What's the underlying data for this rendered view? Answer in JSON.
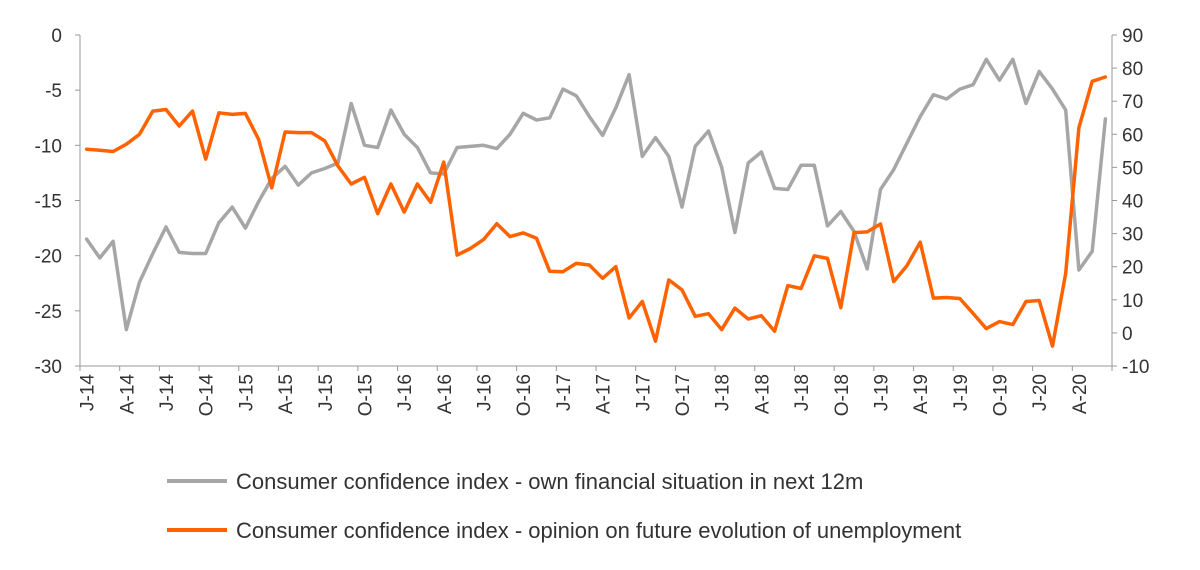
{
  "chart_data": {
    "type": "line",
    "x_tick_labels": [
      "J-14",
      "A-14",
      "J-14",
      "O-14",
      "J-15",
      "A-15",
      "J-15",
      "O-15",
      "J-16",
      "A-16",
      "J-16",
      "O-16",
      "J-17",
      "A-17",
      "J-17",
      "O-17",
      "J-18",
      "A-18",
      "J-18",
      "O-18",
      "J-19",
      "A-19",
      "J-19",
      "O-19",
      "J-20",
      "A-20"
    ],
    "y_left": {
      "min": -30,
      "max": 0,
      "ticks": [
        0,
        -5,
        -10,
        -15,
        -20,
        -25,
        -30
      ]
    },
    "y_right": {
      "min": -10,
      "max": 90,
      "ticks": [
        90,
        80,
        70,
        60,
        50,
        40,
        30,
        20,
        10,
        0,
        -10
      ]
    },
    "grid": false,
    "legend_position": "bottom",
    "series": [
      {
        "name": "Consumer confidence index - own financial situation in next 12m",
        "axis": "left",
        "color": "#a6a6a6",
        "values": [
          -18.5,
          -20.2,
          -18.7,
          -26.7,
          -22.4,
          -19.8,
          -17.4,
          -19.7,
          -19.8,
          -19.8,
          -17.0,
          -15.6,
          -17.5,
          -15.1,
          -13.0,
          -11.9,
          -13.6,
          -12.5,
          -12.1,
          -11.6,
          -6.2,
          -10.0,
          -10.2,
          -6.8,
          -9.0,
          -10.2,
          -12.5,
          -12.6,
          -10.2,
          -10.1,
          -10.0,
          -10.3,
          -9.0,
          -7.1,
          -7.7,
          -7.5,
          -4.9,
          -5.5,
          -7.4,
          -9.1,
          -6.6,
          -3.6,
          -11.0,
          -9.3,
          -11.0,
          -15.6,
          -10.1,
          -8.7,
          -12.0,
          -17.9,
          -11.6,
          -10.6,
          -13.9,
          -14.0,
          -11.8,
          -11.8,
          -17.3,
          -16.0,
          -17.8,
          -21.2,
          -14.0,
          -12.2,
          -9.8,
          -7.4,
          -5.4,
          -5.8,
          -4.9,
          -4.5,
          -2.2,
          -4.1,
          -2.2,
          -6.2,
          -3.3,
          -4.9,
          -6.8,
          -21.3,
          -19.6,
          -7.6
        ]
      },
      {
        "name": "Consumer confidence index - opinion on future evolution of unemployment",
        "axis": "right",
        "color": "#ff6200",
        "values": [
          55.5,
          55.2,
          54.8,
          57.0,
          60.0,
          67.0,
          67.5,
          62.5,
          67.0,
          52.5,
          66.5,
          66.0,
          66.3,
          58.5,
          43.8,
          60.7,
          60.5,
          60.5,
          58.0,
          50.4,
          45.0,
          47.0,
          36.0,
          45.0,
          36.5,
          45.0,
          39.5,
          51.6,
          23.5,
          25.5,
          28.2,
          33.0,
          29.1,
          30.2,
          28.6,
          18.6,
          18.5,
          21.0,
          20.5,
          16.5,
          20.0,
          4.5,
          9.5,
          -2.5,
          16.0,
          13.0,
          5.0,
          5.8,
          1.0,
          7.5,
          4.2,
          5.2,
          0.5,
          14.3,
          13.4,
          23.3,
          22.5,
          7.6,
          30.3,
          30.5,
          32.9,
          15.5,
          20.3,
          27.4,
          10.5,
          10.7,
          10.4,
          5.9,
          1.3,
          3.4,
          2.5,
          9.5,
          9.8,
          -4.0,
          18.0,
          62.0,
          76.0,
          77.3
        ]
      }
    ]
  }
}
